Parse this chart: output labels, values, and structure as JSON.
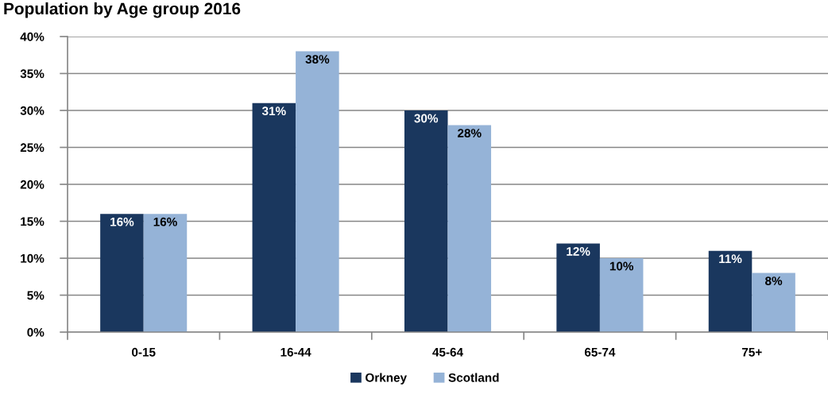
{
  "chart_data": {
    "type": "bar",
    "title": "Population by Age group 2016",
    "categories": [
      "0-15",
      "16-44",
      "45-64",
      "65-74",
      "75+"
    ],
    "series": [
      {
        "name": "Orkney",
        "color": "#1a375e",
        "values": [
          16,
          31,
          30,
          12,
          11
        ],
        "value_labels": [
          "16%",
          "31%",
          "30%",
          "12%",
          "11%"
        ]
      },
      {
        "name": "Scotland",
        "color": "#95b3d7",
        "values": [
          16,
          38,
          28,
          10,
          8
        ],
        "value_labels": [
          "16%",
          "38%",
          "28%",
          "10%",
          "8%"
        ]
      }
    ],
    "ylim": [
      0,
      40
    ],
    "yticks": [
      {
        "value": 0,
        "label": "0%"
      },
      {
        "value": 5,
        "label": "5%"
      },
      {
        "value": 10,
        "label": "10%"
      },
      {
        "value": 15,
        "label": "15%"
      },
      {
        "value": 20,
        "label": "20%"
      },
      {
        "value": 25,
        "label": "25%"
      },
      {
        "value": 30,
        "label": "30%"
      },
      {
        "value": 35,
        "label": "35%"
      },
      {
        "value": 40,
        "label": "40%"
      }
    ],
    "grid": "y",
    "legend": "bottom"
  }
}
